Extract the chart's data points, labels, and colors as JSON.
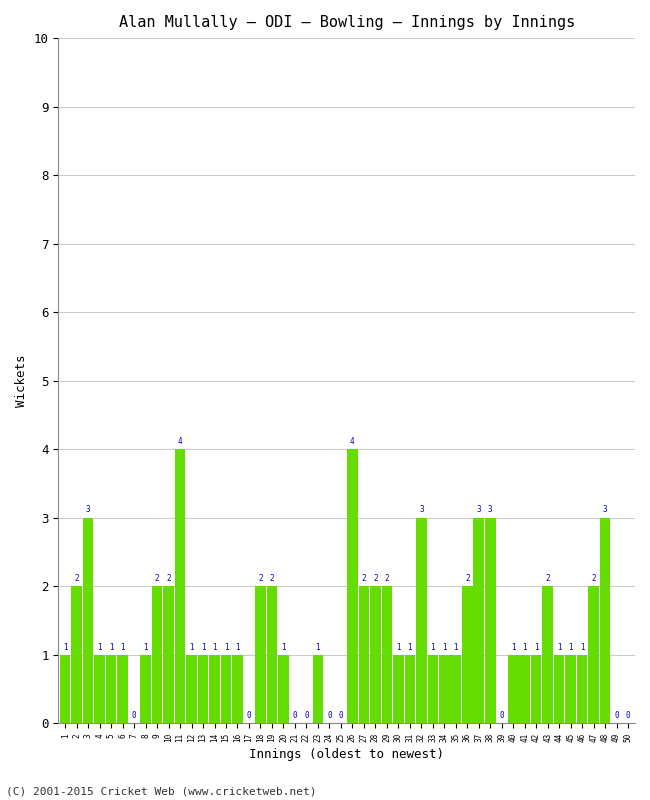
{
  "title": "Alan Mullally – ODI – Bowling – Innings by Innings",
  "xlabel": "Innings (oldest to newest)",
  "ylabel": "Wickets",
  "footer": "(C) 2001-2015 Cricket Web (www.cricketweb.net)",
  "ylim": [
    0,
    10
  ],
  "yticks": [
    0,
    1,
    2,
    3,
    4,
    5,
    6,
    7,
    8,
    9,
    10
  ],
  "bar_color": "#66dd00",
  "label_color": "#0000cc",
  "background_color": "#ffffff",
  "grid_color": "#cccccc",
  "wickets": [
    1,
    2,
    3,
    1,
    1,
    1,
    0,
    1,
    2,
    2,
    4,
    1,
    1,
    1,
    1,
    1,
    0,
    2,
    2,
    1,
    0,
    0,
    1,
    0,
    0,
    4,
    2,
    2,
    2,
    1,
    1,
    3,
    1,
    1,
    1,
    2,
    3,
    3,
    0,
    1,
    1,
    1,
    2,
    1,
    1,
    1,
    2,
    3,
    0,
    0
  ]
}
